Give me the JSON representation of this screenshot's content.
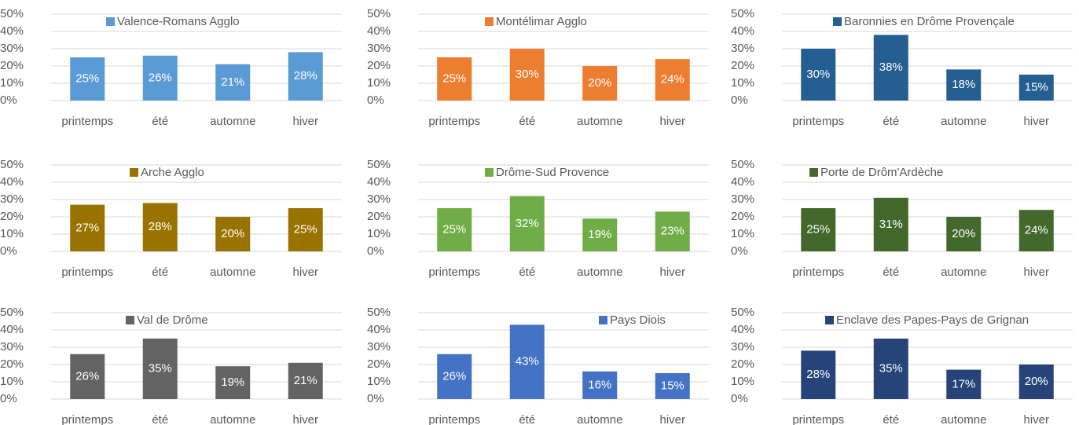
{
  "chart_data": [
    {
      "type": "bar",
      "categories": [
        "printemps",
        "été",
        "automne",
        "hiver"
      ],
      "ylim": [
        0,
        50
      ],
      "yticks": [
        {
          "value": 0,
          "label": "0%"
        },
        {
          "value": 10,
          "label": "10%"
        },
        {
          "value": 20,
          "label": "20%"
        },
        {
          "value": 30,
          "label": "30%"
        },
        {
          "value": 40,
          "label": "40%"
        },
        {
          "value": 50,
          "label": "50%"
        }
      ],
      "grid": true,
      "series": [
        {
          "name": "Valence-Romans Agglo",
          "color": "#5b9bd5",
          "values": [
            25,
            26,
            21,
            28
          ],
          "value_labels": [
            "25%",
            "26%",
            "21%",
            "28%"
          ]
        }
      ]
    },
    {
      "type": "bar",
      "categories": [
        "printemps",
        "été",
        "automne",
        "hiver"
      ],
      "ylim": [
        0,
        50
      ],
      "yticks": [
        {
          "value": 0,
          "label": "0%"
        },
        {
          "value": 10,
          "label": "10%"
        },
        {
          "value": 20,
          "label": "20%"
        },
        {
          "value": 30,
          "label": "30%"
        },
        {
          "value": 40,
          "label": "40%"
        },
        {
          "value": 50,
          "label": "50%"
        }
      ],
      "grid": true,
      "series": [
        {
          "name": "Montélimar Agglo",
          "color": "#ed7d31",
          "values": [
            25,
            30,
            20,
            24
          ],
          "value_labels": [
            "25%",
            "30%",
            "20%",
            "24%"
          ]
        }
      ]
    },
    {
      "type": "bar",
      "categories": [
        "printemps",
        "été",
        "automne",
        "hiver"
      ],
      "ylim": [
        0,
        50
      ],
      "yticks": [
        {
          "value": 0,
          "label": "0%"
        },
        {
          "value": 10,
          "label": "10%"
        },
        {
          "value": 20,
          "label": "20%"
        },
        {
          "value": 30,
          "label": "30%"
        },
        {
          "value": 40,
          "label": "40%"
        },
        {
          "value": 50,
          "label": "50%"
        }
      ],
      "grid": true,
      "series": [
        {
          "name": "Baronnies en Drôme Provençale",
          "color": "#255e91",
          "values": [
            30,
            38,
            18,
            15
          ],
          "value_labels": [
            "30%",
            "38%",
            "18%",
            "15%"
          ]
        }
      ]
    },
    {
      "type": "bar",
      "categories": [
        "printemps",
        "été",
        "automne",
        "hiver"
      ],
      "ylim": [
        0,
        50
      ],
      "yticks": [
        {
          "value": 0,
          "label": "0%"
        },
        {
          "value": 10,
          "label": "10%"
        },
        {
          "value": 20,
          "label": "20%"
        },
        {
          "value": 30,
          "label": "30%"
        },
        {
          "value": 40,
          "label": "40%"
        },
        {
          "value": 50,
          "label": "50%"
        }
      ],
      "grid": true,
      "series": [
        {
          "name": "Arche Agglo",
          "color": "#997300",
          "values": [
            27,
            28,
            20,
            25
          ],
          "value_labels": [
            "27%",
            "28%",
            "20%",
            "25%"
          ]
        }
      ]
    },
    {
      "type": "bar",
      "categories": [
        "printemps",
        "été",
        "automne",
        "hiver"
      ],
      "ylim": [
        0,
        50
      ],
      "yticks": [
        {
          "value": 0,
          "label": "0%"
        },
        {
          "value": 10,
          "label": "10%"
        },
        {
          "value": 20,
          "label": "20%"
        },
        {
          "value": 30,
          "label": "30%"
        },
        {
          "value": 40,
          "label": "40%"
        },
        {
          "value": 50,
          "label": "50%"
        }
      ],
      "grid": true,
      "series": [
        {
          "name": "Drôme-Sud Provence",
          "color": "#70ad47",
          "values": [
            25,
            32,
            19,
            23
          ],
          "value_labels": [
            "25%",
            "32%",
            "19%",
            "23%"
          ]
        }
      ]
    },
    {
      "type": "bar",
      "categories": [
        "printemps",
        "été",
        "automne",
        "hiver"
      ],
      "ylim": [
        0,
        50
      ],
      "yticks": [
        {
          "value": 0,
          "label": "0%"
        },
        {
          "value": 10,
          "label": "10%"
        },
        {
          "value": 20,
          "label": "20%"
        },
        {
          "value": 30,
          "label": "30%"
        },
        {
          "value": 40,
          "label": "40%"
        },
        {
          "value": 50,
          "label": "50%"
        }
      ],
      "grid": true,
      "series": [
        {
          "name": "Porte de Drôm'Ardèche",
          "color": "#43682b",
          "values": [
            25,
            31,
            20,
            24
          ],
          "value_labels": [
            "25%",
            "31%",
            "20%",
            "24%"
          ]
        }
      ]
    },
    {
      "type": "bar",
      "categories": [
        "printemps",
        "été",
        "automne",
        "hiver"
      ],
      "ylim": [
        0,
        50
      ],
      "yticks": [
        {
          "value": 0,
          "label": "0%"
        },
        {
          "value": 10,
          "label": "10%"
        },
        {
          "value": 20,
          "label": "20%"
        },
        {
          "value": 30,
          "label": "30%"
        },
        {
          "value": 40,
          "label": "40%"
        },
        {
          "value": 50,
          "label": "50%"
        }
      ],
      "grid": true,
      "series": [
        {
          "name": "Val de Drôme",
          "color": "#636363",
          "values": [
            26,
            35,
            19,
            21
          ],
          "value_labels": [
            "26%",
            "35%",
            "19%",
            "21%"
          ]
        }
      ]
    },
    {
      "type": "bar",
      "categories": [
        "printemps",
        "été",
        "automne",
        "hiver"
      ],
      "ylim": [
        0,
        50
      ],
      "yticks": [
        {
          "value": 0,
          "label": "0%"
        },
        {
          "value": 10,
          "label": "10%"
        },
        {
          "value": 20,
          "label": "20%"
        },
        {
          "value": 30,
          "label": "30%"
        },
        {
          "value": 40,
          "label": "40%"
        },
        {
          "value": 50,
          "label": "50%"
        }
      ],
      "grid": true,
      "series": [
        {
          "name": "Pays Diois",
          "color": "#4472c4",
          "values": [
            26,
            43,
            16,
            15
          ],
          "value_labels": [
            "26%",
            "43%",
            "16%",
            "15%"
          ]
        }
      ]
    },
    {
      "type": "bar",
      "categories": [
        "printemps",
        "été",
        "automne",
        "hiver"
      ],
      "ylim": [
        0,
        50
      ],
      "yticks": [
        {
          "value": 0,
          "label": "0%"
        },
        {
          "value": 10,
          "label": "10%"
        },
        {
          "value": 20,
          "label": "20%"
        },
        {
          "value": 30,
          "label": "30%"
        },
        {
          "value": 40,
          "label": "40%"
        },
        {
          "value": 50,
          "label": "50%"
        }
      ],
      "grid": true,
      "series": [
        {
          "name": "Enclave des Papes-Pays de Grignan",
          "color": "#264478",
          "values": [
            28,
            35,
            17,
            20
          ],
          "value_labels": [
            "28%",
            "35%",
            "17%",
            "20%"
          ]
        }
      ]
    }
  ]
}
